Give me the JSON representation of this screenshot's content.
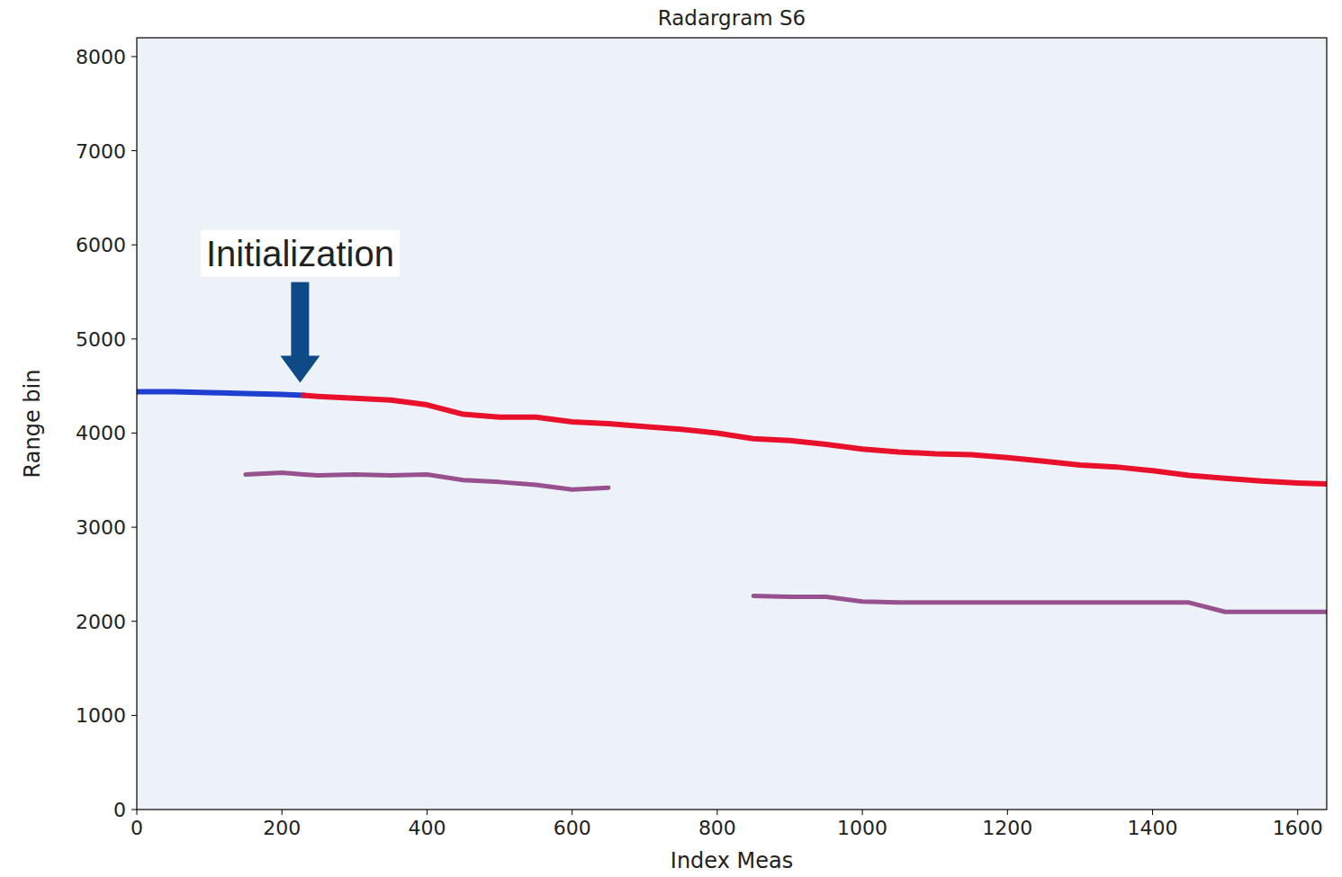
{
  "chart_data": {
    "type": "line",
    "title": "Radargram S6",
    "x_label": "Index Meas",
    "y_label": "Range bin",
    "annotations": [
      {
        "text": "Initialization"
      }
    ],
    "x": [
      0,
      50,
      100,
      150,
      200,
      230,
      250,
      300,
      350,
      400,
      450,
      500,
      550,
      600,
      650,
      700,
      750,
      800,
      850,
      900,
      950,
      1000,
      1050,
      1100,
      1150,
      1200,
      1250,
      1300,
      1350,
      1400,
      1450,
      1500,
      1550,
      1600,
      1640
    ],
    "series": [
      {
        "color": "#1f3fd0",
        "line_style": "solid",
        "values": [
          4440,
          4440,
          4430,
          4420,
          4410,
          4400,
          null,
          null,
          null,
          null,
          null,
          null,
          null,
          null,
          null,
          null,
          null,
          null,
          null,
          null,
          null,
          null,
          null,
          null,
          null,
          null,
          null,
          null,
          null,
          null,
          null,
          null,
          null,
          null,
          null
        ]
      },
      {
        "color": "#e8102a",
        "line_style": "solid",
        "values": [
          null,
          null,
          null,
          null,
          null,
          4400,
          4390,
          4370,
          4350,
          4300,
          4200,
          4170,
          4170,
          4120,
          4100,
          4070,
          4040,
          4000,
          3940,
          3920,
          3880,
          3830,
          3800,
          3780,
          3770,
          3740,
          3700,
          3660,
          3640,
          3600,
          3550,
          3520,
          3490,
          3470,
          3460
        ]
      },
      {
        "color": "#7a1b6b",
        "line_style": "solid",
        "values": [
          null,
          null,
          null,
          3560,
          3580,
          3560,
          3550,
          3560,
          3550,
          3560,
          3500,
          3480,
          3450,
          3400,
          3420,
          null,
          null,
          null,
          null,
          null,
          null,
          null,
          null,
          null,
          null,
          null,
          null,
          null,
          null,
          null,
          null,
          null,
          null,
          null,
          null
        ]
      },
      {
        "color": "#7a1b6b",
        "line_style": "solid",
        "values": [
          null,
          null,
          null,
          null,
          null,
          null,
          null,
          null,
          null,
          null,
          null,
          null,
          null,
          null,
          null,
          null,
          null,
          null,
          2270,
          2260,
          2260,
          2210,
          2200,
          2200,
          2200,
          2200,
          2200,
          2200,
          2200,
          2200,
          2200,
          2100,
          2100,
          2100,
          2100
        ]
      }
    ],
    "xlim": [
      0,
      1640
    ],
    "ylim": [
      0,
      8200
    ],
    "xticks": [
      0,
      200,
      400,
      600,
      800,
      1000,
      1200,
      1400,
      1600
    ],
    "yticks": [
      0,
      1000,
      2000,
      3000,
      4000,
      5000,
      6000,
      7000,
      8000
    ],
    "grid": false
  }
}
